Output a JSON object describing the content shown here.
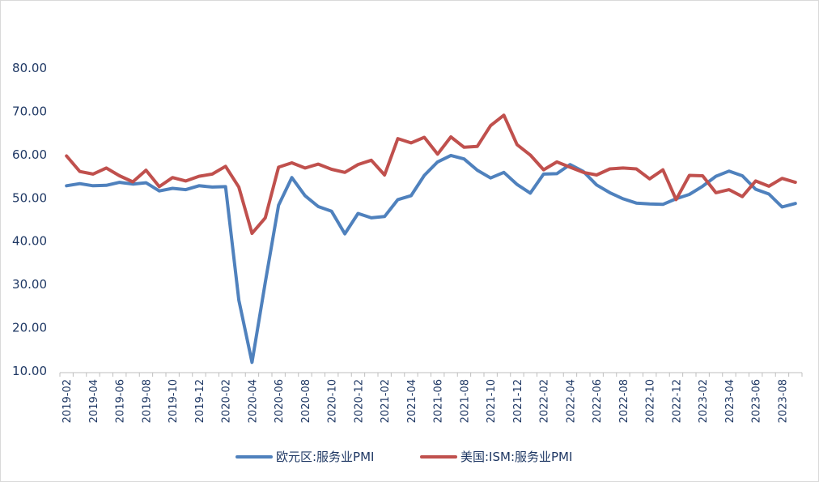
{
  "chart_data": {
    "type": "line",
    "title": "",
    "xlabel": "",
    "ylabel": "",
    "ylim": [
      10,
      80
    ],
    "yticks": [
      "10.00",
      "20.00",
      "30.00",
      "40.00",
      "50.00",
      "60.00",
      "70.00",
      "80.00"
    ],
    "x": [
      "2019-02",
      "2019-03",
      "2019-04",
      "2019-05",
      "2019-06",
      "2019-07",
      "2019-08",
      "2019-09",
      "2019-10",
      "2019-11",
      "2019-12",
      "2020-01",
      "2020-02",
      "2020-03",
      "2020-04",
      "2020-05",
      "2020-06",
      "2020-07",
      "2020-08",
      "2020-09",
      "2020-10",
      "2020-11",
      "2020-12",
      "2021-01",
      "2021-02",
      "2021-03",
      "2021-04",
      "2021-05",
      "2021-06",
      "2021-07",
      "2021-08",
      "2021-09",
      "2021-10",
      "2021-11",
      "2021-12",
      "2022-01",
      "2022-02",
      "2022-03",
      "2022-04",
      "2022-05",
      "2022-06",
      "2022-07",
      "2022-08",
      "2022-09",
      "2022-10",
      "2022-11",
      "2022-12",
      "2023-01",
      "2023-02",
      "2023-03",
      "2023-04",
      "2023-05",
      "2023-06",
      "2023-07",
      "2023-08",
      "2023-09"
    ],
    "xtick_labels": [
      "2019-02",
      "2019-04",
      "2019-06",
      "2019-08",
      "2019-10",
      "2019-12",
      "2020-02",
      "2020-04",
      "2020-06",
      "2020-08",
      "2020-10",
      "2020-12",
      "2021-02",
      "2021-04",
      "2021-06",
      "2021-08",
      "2021-10",
      "2021-12",
      "2022-02",
      "2022-04",
      "2022-06",
      "2022-08",
      "2022-10",
      "2022-12",
      "2023-02",
      "2023-04",
      "2023-06",
      "2023-08"
    ],
    "series": [
      {
        "name": "欧元区:服务业PMI",
        "color": "#4f81bd",
        "values": [
          52.8,
          53.3,
          52.8,
          52.9,
          53.6,
          53.2,
          53.5,
          51.6,
          52.2,
          51.9,
          52.8,
          52.5,
          52.6,
          26.4,
          12.0,
          30.5,
          48.3,
          54.7,
          50.5,
          48.0,
          46.9,
          41.7,
          46.4,
          45.4,
          45.7,
          49.6,
          50.5,
          55.2,
          58.3,
          59.8,
          59.0,
          56.4,
          54.6,
          55.9,
          53.1,
          51.1,
          55.5,
          55.6,
          57.7,
          56.1,
          53.0,
          51.2,
          49.8,
          48.8,
          48.6,
          48.5,
          49.8,
          50.8,
          52.7,
          55.0,
          56.2,
          55.1,
          52.0,
          50.9,
          47.9,
          48.7
        ]
      },
      {
        "name": "美国:ISM:服务业PMI",
        "color": "#c0504d",
        "values": [
          59.7,
          56.1,
          55.5,
          56.9,
          55.1,
          53.7,
          56.4,
          52.6,
          54.7,
          53.9,
          55.0,
          55.5,
          57.3,
          52.5,
          41.8,
          45.4,
          57.1,
          58.1,
          56.9,
          57.8,
          56.6,
          55.9,
          57.7,
          58.7,
          55.3,
          63.7,
          62.7,
          64.0,
          60.1,
          64.1,
          61.7,
          61.9,
          66.7,
          69.1,
          62.3,
          59.9,
          56.5,
          58.3,
          57.1,
          55.9,
          55.3,
          56.7,
          56.9,
          56.7,
          54.4,
          56.5,
          49.6,
          55.2,
          55.1,
          51.2,
          51.9,
          50.3,
          53.9,
          52.7,
          54.5,
          53.6
        ]
      }
    ],
    "legend_position": "bottom",
    "grid": false
  }
}
